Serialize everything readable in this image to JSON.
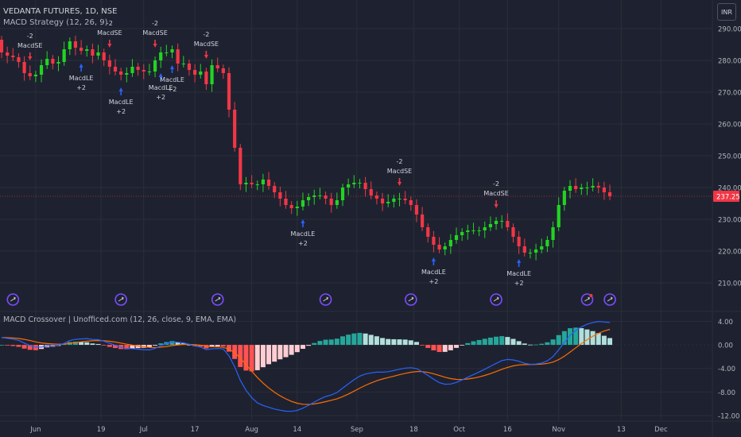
{
  "header": {
    "symbol_line": "VEDANTA FUTURES, 1D, NSE",
    "strategy_line": "MACD Strategy (12, 26, 9)",
    "indicator_line": "MACD Crossover | Unofficed.com (12, 26, close, 9, EMA, EMA)",
    "currency_badge": "INR"
  },
  "colors": {
    "background": "#1e2230",
    "grid": "#2a2e39",
    "up": "#22d422",
    "down": "#f23645",
    "macd_line": "#2962ff",
    "signal_line": "#ff6d00",
    "hist_up_strong": "#26a69a",
    "hist_up_weak": "#b2dfdb",
    "hist_down_strong": "#ff5252",
    "hist_down_weak": "#ffcdd2",
    "entry_arrow": "#2962ff",
    "exit_arrow": "#f23645",
    "axis_text": "#b2b5be",
    "event_icon": "#7b4cff"
  },
  "chart_data": [
    {
      "type": "candlestick",
      "title": "VEDANTA FUTURES, 1D, NSE",
      "ylim": [
        206,
        292
      ],
      "y_ticks": [
        "210.00",
        "220.00",
        "230.00",
        "240.00",
        "250.00",
        "260.00",
        "270.00",
        "280.00",
        "290.00"
      ],
      "x_tick_labels": [
        "Jun",
        "19",
        "Jul",
        "17",
        "Aug",
        "14",
        "Sep",
        "18",
        "Oct",
        "16",
        "Nov",
        "13",
        "Dec"
      ],
      "last_price_label": "237.25",
      "last_price": 237.25,
      "grid": true,
      "close": [
        282.5,
        281.5,
        281.0,
        279.5,
        276.0,
        275.0,
        275.5,
        278.5,
        280.5,
        279.0,
        279.5,
        283.5,
        286.0,
        284.0,
        283.0,
        283.5,
        281.5,
        282.5,
        280.0,
        278.0,
        276.5,
        275.5,
        276.0,
        278.0,
        277.0,
        276.5,
        276.5,
        280.0,
        282.5,
        282.5,
        283.5,
        279.0,
        279.0,
        277.0,
        275.5,
        276.5,
        272.5,
        278.5,
        277.5,
        276.0,
        264.5,
        252.5,
        241.0,
        241.5,
        241.0,
        241.0,
        242.5,
        240.5,
        238.5,
        236.5,
        234.5,
        233.5,
        234.0,
        236.0,
        237.0,
        237.5,
        237.5,
        236.5,
        234.5,
        236.0,
        240.0,
        241.0,
        241.5,
        241.5,
        239.5,
        237.5,
        236.5,
        235.0,
        235.5,
        236.5,
        236.5,
        236.0,
        234.5,
        231.5,
        227.5,
        224.5,
        222.0,
        220.5,
        221.5,
        223.5,
        225.0,
        226.0,
        226.5,
        226.5,
        226.5,
        227.5,
        228.5,
        229.5,
        229.5,
        227.5,
        224.5,
        221.5,
        219.5,
        219.5,
        220.5,
        221.5,
        223.5,
        227.5,
        234.5,
        239.0,
        240.5,
        239.5,
        240.0,
        240.0,
        240.5,
        240.0,
        238.5,
        237.25
      ],
      "open": [
        286.5,
        282.5,
        281.5,
        281.0,
        279.5,
        276.0,
        275.0,
        275.5,
        278.5,
        280.5,
        279.0,
        279.5,
        283.5,
        286.0,
        284.0,
        283.0,
        283.5,
        281.5,
        282.5,
        280.0,
        278.0,
        276.5,
        275.5,
        276.0,
        278.0,
        277.0,
        276.5,
        276.5,
        280.0,
        282.5,
        282.5,
        283.5,
        279.0,
        279.0,
        277.0,
        275.5,
        276.5,
        272.5,
        278.5,
        277.5,
        276.0,
        264.5,
        252.5,
        241.0,
        241.5,
        241.0,
        241.0,
        242.5,
        240.5,
        238.5,
        236.5,
        234.5,
        233.5,
        234.0,
        236.0,
        237.0,
        237.5,
        237.5,
        236.5,
        234.5,
        236.0,
        240.0,
        241.0,
        241.5,
        241.5,
        239.5,
        237.5,
        236.5,
        235.0,
        235.5,
        236.5,
        236.5,
        236.0,
        234.5,
        231.5,
        227.5,
        224.5,
        222.0,
        220.5,
        221.5,
        223.5,
        225.0,
        226.0,
        226.5,
        226.5,
        226.5,
        227.5,
        228.5,
        229.5,
        229.5,
        227.5,
        224.5,
        221.5,
        219.5,
        219.5,
        220.5,
        221.5,
        223.5,
        227.5,
        234.5,
        239.0,
        240.5,
        239.5,
        240.0,
        240.0,
        240.5,
        240.0,
        238.5
      ],
      "signals": [
        {
          "bar": 5,
          "side": "short",
          "label": "MacdSE",
          "qty": "-2"
        },
        {
          "bar": 14,
          "side": "long",
          "label": "MacdLE",
          "qty": "+2"
        },
        {
          "bar": 19,
          "side": "short",
          "label": "MacdSE",
          "qty": "-2"
        },
        {
          "bar": 21,
          "side": "long",
          "label": "MacdLE",
          "qty": "+2"
        },
        {
          "bar": 27,
          "side": "short",
          "label": "MacdSE",
          "qty": "-2"
        },
        {
          "bar": 28,
          "side": "long",
          "label": "MacdLE",
          "qty": "+2"
        },
        {
          "bar": 30,
          "side": "long",
          "label": "MacdLE",
          "qty": "+2"
        },
        {
          "bar": 36,
          "side": "short",
          "label": "MacdSE",
          "qty": "-2"
        },
        {
          "bar": 53,
          "side": "long",
          "label": "MacdLE",
          "qty": "+2"
        },
        {
          "bar": 70,
          "side": "short",
          "label": "MacdSE",
          "qty": "-2"
        },
        {
          "bar": 76,
          "side": "long",
          "label": "MacdLE",
          "qty": "+2"
        },
        {
          "bar": 87,
          "side": "short",
          "label": "MacdSE",
          "qty": "-2"
        },
        {
          "bar": 91,
          "side": "long",
          "label": "MacdLE",
          "qty": "+2"
        }
      ],
      "event_icons": [
        {
          "bar": 2,
          "kind": "dividend"
        },
        {
          "bar": 21,
          "kind": "dividend"
        },
        {
          "bar": 38,
          "kind": "dividend"
        },
        {
          "bar": 57,
          "kind": "dividend"
        },
        {
          "bar": 72,
          "kind": "dividend"
        },
        {
          "bar": 87,
          "kind": "dividend"
        },
        {
          "bar": 103,
          "kind": "earnings"
        },
        {
          "bar": 107,
          "kind": "dividend"
        }
      ]
    },
    {
      "type": "line",
      "title": "MACD Crossover | Unofficed.com (12, 26, close, 9, EMA, EMA)",
      "ylim": [
        -12,
        5
      ],
      "y_ticks": [
        "4.00",
        "0.00",
        "-4.00",
        "-8.00",
        "-12.00"
      ],
      "grid": true,
      "series": [
        {
          "role": "macd",
          "values": [
            1.24,
            1.12,
            0.98,
            0.76,
            0.31,
            -0.11,
            -0.39,
            -0.37,
            -0.18,
            -0.14,
            -0.06,
            0.27,
            0.74,
            0.94,
            1.01,
            1.07,
            0.93,
            0.88,
            0.63,
            0.28,
            -0.06,
            -0.41,
            -0.63,
            -0.64,
            -0.73,
            -0.81,
            -0.85,
            -0.58,
            -0.13,
            0.21,
            0.55,
            0.44,
            0.34,
            0.1,
            -0.21,
            -0.37,
            -0.81,
            -0.67,
            -0.62,
            -0.7,
            -1.87,
            -3.71,
            -6.02,
            -7.71,
            -8.97,
            -9.85,
            -10.29,
            -10.6,
            -10.89,
            -11.1,
            -11.26,
            -11.29,
            -11.14,
            -10.75,
            -10.26,
            -9.71,
            -9.19,
            -8.76,
            -8.5,
            -8.09,
            -7.34,
            -6.61,
            -5.92,
            -5.31,
            -4.94,
            -4.75,
            -4.63,
            -4.63,
            -4.55,
            -4.35,
            -4.13,
            -3.94,
            -3.88,
            -4.03,
            -4.57,
            -5.19,
            -5.83,
            -6.41,
            -6.69,
            -6.65,
            -6.37,
            -5.96,
            -5.5,
            -5.04,
            -4.61,
            -4.14,
            -3.64,
            -3.13,
            -2.67,
            -2.48,
            -2.55,
            -2.78,
            -3.12,
            -3.3,
            -3.26,
            -3.08,
            -2.71,
            -1.99,
            -0.84,
            0.42,
            1.61,
            2.44,
            3.06,
            3.5,
            3.8,
            3.97,
            3.9,
            3.8
          ]
        },
        {
          "role": "signal",
          "values": [
            1.24,
            1.22,
            1.17,
            1.09,
            0.94,
            0.73,
            0.51,
            0.33,
            0.23,
            0.16,
            0.11,
            0.14,
            0.26,
            0.4,
            0.52,
            0.63,
            0.69,
            0.73,
            0.71,
            0.62,
            0.48,
            0.3,
            0.11,
            -0.04,
            -0.18,
            -0.31,
            -0.42,
            -0.45,
            -0.39,
            -0.27,
            -0.11,
            0.0,
            0.07,
            0.08,
            0.02,
            -0.06,
            -0.21,
            -0.3,
            -0.36,
            -0.43,
            -0.72,
            -1.32,
            -2.26,
            -3.35,
            -4.47,
            -5.55,
            -6.5,
            -7.32,
            -8.04,
            -8.65,
            -9.17,
            -9.6,
            -9.91,
            -10.08,
            -10.11,
            -10.03,
            -9.86,
            -9.64,
            -9.41,
            -9.15,
            -8.79,
            -8.35,
            -7.86,
            -7.35,
            -6.87,
            -6.45,
            -6.09,
            -5.8,
            -5.55,
            -5.31,
            -5.07,
            -4.84,
            -4.65,
            -4.53,
            -4.54,
            -4.67,
            -4.9,
            -5.2,
            -5.5,
            -5.73,
            -5.86,
            -5.88,
            -5.8,
            -5.65,
            -5.44,
            -5.18,
            -4.87,
            -4.52,
            -4.15,
            -3.82,
            -3.57,
            -3.41,
            -3.35,
            -3.34,
            -3.32,
            -3.27,
            -3.15,
            -2.92,
            -2.5,
            -1.92,
            -1.22,
            -0.49,
            0.22,
            0.88,
            1.46,
            1.96,
            2.35,
            2.64
          ]
        },
        {
          "role": "histogram",
          "values": [
            0.0,
            -0.1,
            -0.19,
            -0.33,
            -0.63,
            -0.84,
            -0.9,
            -0.7,
            -0.41,
            -0.3,
            -0.17,
            0.13,
            0.48,
            0.54,
            0.49,
            0.44,
            0.24,
            0.15,
            -0.08,
            -0.34,
            -0.54,
            -0.71,
            -0.74,
            -0.6,
            -0.55,
            -0.5,
            -0.43,
            -0.13,
            0.26,
            0.48,
            0.66,
            0.44,
            0.27,
            0.02,
            -0.23,
            -0.31,
            -0.6,
            -0.37,
            -0.26,
            -0.27,
            -1.15,
            -2.39,
            -3.76,
            -4.36,
            -4.5,
            -4.3,
            -3.79,
            -3.28,
            -2.85,
            -2.45,
            -2.09,
            -1.69,
            -1.23,
            -0.67,
            -0.15,
            0.32,
            0.67,
            0.88,
            0.91,
            1.06,
            1.45,
            1.74,
            1.94,
            2.04,
            1.93,
            1.7,
            1.46,
            1.17,
            1.0,
            0.96,
            0.94,
            0.9,
            0.77,
            0.5,
            -0.03,
            -0.52,
            -0.93,
            -1.21,
            -1.19,
            -0.92,
            -0.51,
            -0.08,
            0.3,
            0.61,
            0.83,
            1.04,
            1.23,
            1.39,
            1.48,
            1.34,
            1.02,
            0.63,
            0.23,
            0.04,
            0.06,
            0.19,
            0.44,
            0.93,
            1.66,
            2.34,
            2.83,
            2.93,
            2.84,
            2.62,
            2.34,
            2.01,
            1.55,
            1.16
          ]
        }
      ]
    }
  ]
}
